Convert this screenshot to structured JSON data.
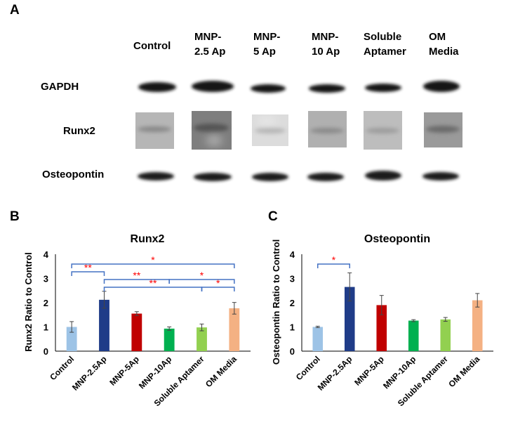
{
  "panel_labels": {
    "a": "A",
    "b": "B",
    "c": "C"
  },
  "blot": {
    "lanes": [
      {
        "line1": "Control",
        "line2": ""
      },
      {
        "line1": "MNP-",
        "line2": "2.5 Ap"
      },
      {
        "line1": "MNP-",
        "line2": "5 Ap"
      },
      {
        "line1": "MNP-",
        "line2": "10 Ap"
      },
      {
        "line1": "Soluble",
        "line2": "Aptamer"
      },
      {
        "line1": "OM",
        "line2": "Media"
      }
    ],
    "rows": [
      "GAPDH",
      "Runx2",
      "Osteopontin"
    ]
  },
  "chart_data": [
    {
      "type": "bar",
      "title": "Runx2",
      "ylabel": "Runx2 Ratio to Control",
      "xlabel": "",
      "ylim": [
        0,
        4
      ],
      "yticks": [
        "0",
        "1",
        "2",
        "3",
        "4"
      ],
      "categories": [
        "Control",
        "MNP-2.5Ap",
        "MNP-5Ap",
        "MNP-10Ap",
        "Soluble Aptamer",
        "OM Media"
      ],
      "values": [
        1.0,
        2.12,
        1.55,
        0.93,
        0.98,
        1.77
      ],
      "errors": [
        0.22,
        0.35,
        0.08,
        0.07,
        0.14,
        0.24
      ],
      "colors": [
        "#9dc3e6",
        "#1f3c88",
        "#c00000",
        "#00b050",
        "#92d050",
        "#f4b183"
      ],
      "significance": [
        {
          "from": 0,
          "to": 5,
          "label": "*"
        },
        {
          "from": 0,
          "to": 1,
          "label": "**"
        },
        {
          "from": 1,
          "to": 3,
          "label": "**"
        },
        {
          "from": 3,
          "to": 5,
          "label": "*"
        },
        {
          "from": 1,
          "to": 4,
          "label": "**"
        },
        {
          "from": 4,
          "to": 5,
          "label": "*"
        }
      ]
    },
    {
      "type": "bar",
      "title": "Osteopontin",
      "ylabel": "Osteopontin Ratio to Control",
      "xlabel": "",
      "ylim": [
        0,
        4
      ],
      "yticks": [
        "0",
        "1",
        "2",
        "3",
        "4"
      ],
      "categories": [
        "Control",
        "MNP-2.5Ap",
        "MNP-5Ap",
        "MNP-10Ap",
        "Soluble Aptamer",
        "OM Media"
      ],
      "values": [
        1.0,
        2.65,
        1.9,
        1.26,
        1.31,
        2.1
      ],
      "errors": [
        0.03,
        0.58,
        0.4,
        0.04,
        0.08,
        0.28
      ],
      "colors": [
        "#9dc3e6",
        "#1f3c88",
        "#c00000",
        "#00b050",
        "#92d050",
        "#f4b183"
      ],
      "significance": [
        {
          "from": 0,
          "to": 1,
          "label": "*"
        }
      ]
    }
  ]
}
